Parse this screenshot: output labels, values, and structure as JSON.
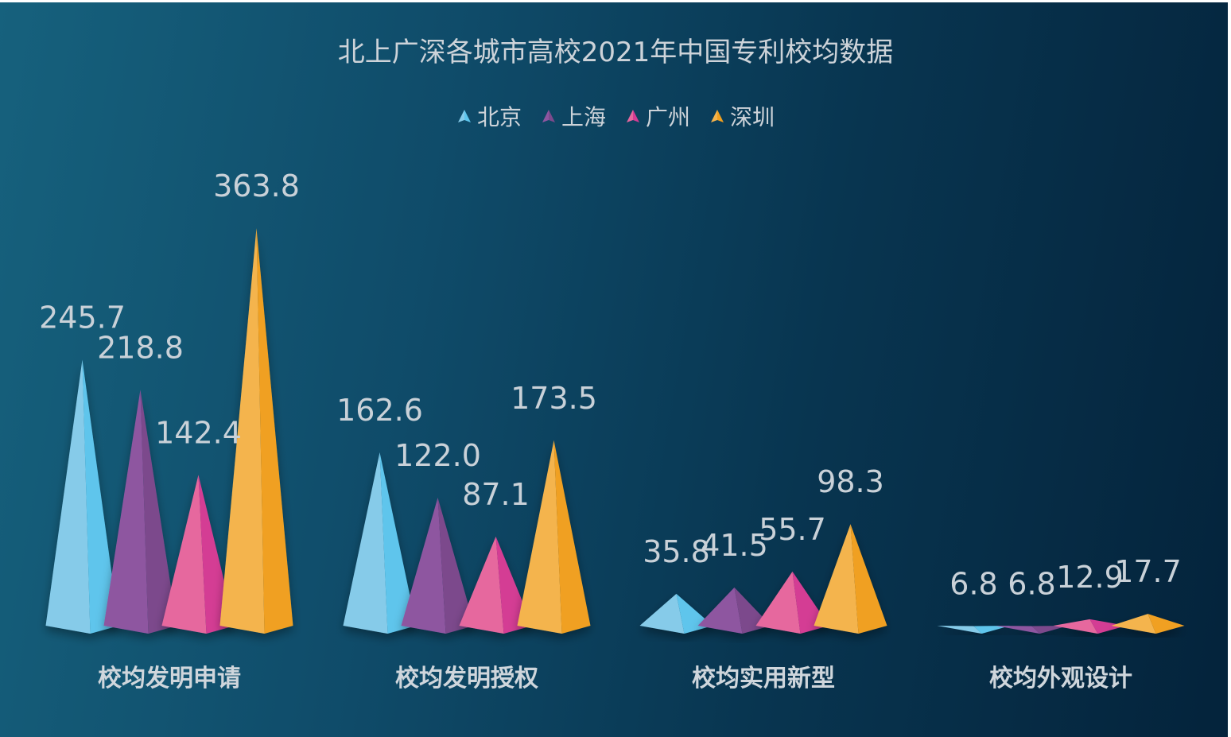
{
  "chart_data": {
    "type": "bar",
    "title": "北上广深各城市高校2021年中国专利校均数据",
    "categories": [
      "校均发明申请",
      "校均发明授权",
      "校均实用新型",
      "校均外观设计"
    ],
    "series": [
      {
        "name": "北京",
        "values": [
          245.7,
          162.6,
          35.8,
          6.8
        ],
        "color": "#5ec5ec",
        "color_light": "#86cbe9"
      },
      {
        "name": "上海",
        "values": [
          218.8,
          122.0,
          41.5,
          6.8
        ],
        "color": "#7b4a8c",
        "color_light": "#8e56a0"
      },
      {
        "name": "广州",
        "values": [
          142.4,
          87.1,
          55.7,
          12.9
        ],
        "color": "#d43c94",
        "color_light": "#e6679e"
      },
      {
        "name": "深圳",
        "values": [
          363.8,
          173.5,
          98.3,
          17.7
        ],
        "color": "#f0a020",
        "color_light": "#f4b44d"
      }
    ],
    "value_labels": [
      [
        "245.7",
        "162.6",
        "35.8",
        "6.8"
      ],
      [
        "218.8",
        "122.0",
        "41.5",
        "6.8"
      ],
      [
        "142.4",
        "87.1",
        "55.7",
        "12.9"
      ],
      [
        "363.8",
        "173.5",
        "98.3",
        "17.7"
      ]
    ],
    "legend_position": "top",
    "marker": "pyramid",
    "grid": false,
    "ylim": [
      0,
      363.8
    ]
  }
}
